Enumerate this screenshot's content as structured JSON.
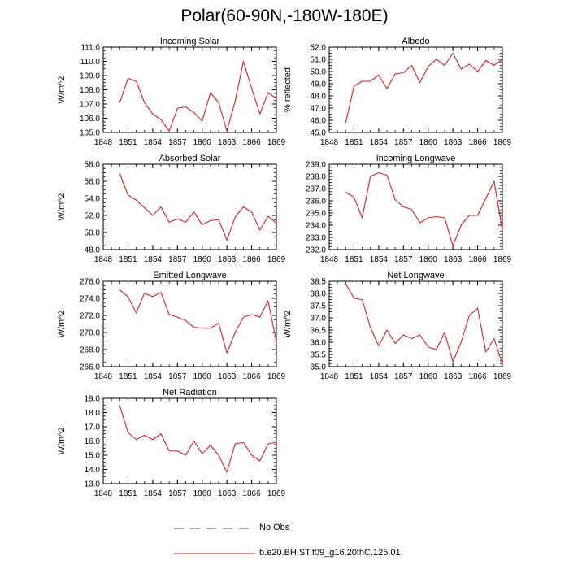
{
  "title": "Polar(60-90N,-180W-180E)",
  "colors": {
    "model_line": "#e8191e",
    "obs_line": "#3b3bb8",
    "axis": "#000000"
  },
  "legend": {
    "obs_label": "No Obs",
    "model_label": "b.e20.BHIST.f09_g16.20thC.125.01"
  },
  "chart_data": [
    {
      "type": "line",
      "title": "Incoming Solar",
      "ylabel": "W/m^2",
      "xlim": [
        1848,
        1869
      ],
      "ylim": [
        105.0,
        111.0
      ],
      "yticks": [
        105.0,
        106.0,
        107.0,
        108.0,
        109.0,
        110.0,
        111.0
      ],
      "ytick_labels": [
        "105.0",
        "106.0",
        "107.0",
        "108.0",
        "109.0",
        "110.0",
        "111.0"
      ],
      "xticks": [
        1848,
        1851,
        1854,
        1857,
        1860,
        1863,
        1866,
        1869
      ],
      "xtick_labels": [
        "1848",
        "1851",
        "1854",
        "1857",
        "1860",
        "1863",
        "1866",
        "1869"
      ],
      "series": [
        {
          "x": [
            1850,
            1851,
            1852,
            1853,
            1854,
            1855,
            1856,
            1857,
            1858,
            1859,
            1860,
            1861,
            1862,
            1863,
            1864,
            1865,
            1866,
            1867,
            1868,
            1869
          ],
          "values": [
            107.1,
            108.8,
            108.6,
            107.1,
            106.3,
            105.9,
            105.1,
            106.7,
            106.8,
            106.4,
            105.8,
            107.8,
            107.1,
            105.1,
            107.2,
            110.0,
            108.1,
            106.3,
            107.8,
            107.4
          ]
        }
      ]
    },
    {
      "type": "line",
      "title": "Albedo",
      "ylabel": "% reflected",
      "xlim": [
        1848,
        1869
      ],
      "ylim": [
        45.0,
        52.0
      ],
      "yticks": [
        45.0,
        46.0,
        47.0,
        48.0,
        49.0,
        50.0,
        51.0,
        52.0
      ],
      "ytick_labels": [
        "45.0",
        "46.0",
        "47.0",
        "48.0",
        "49.0",
        "50.0",
        "51.0",
        "52.0"
      ],
      "xticks": [
        1848,
        1851,
        1854,
        1857,
        1860,
        1863,
        1866,
        1869
      ],
      "xtick_labels": [
        "1848",
        "1851",
        "1854",
        "1857",
        "1860",
        "1863",
        "1866",
        "1869"
      ],
      "series": [
        {
          "x": [
            1850,
            1851,
            1852,
            1853,
            1854,
            1855,
            1856,
            1857,
            1858,
            1859,
            1860,
            1861,
            1862,
            1863,
            1864,
            1865,
            1866,
            1867,
            1868,
            1869
          ],
          "values": [
            45.8,
            48.8,
            49.2,
            49.2,
            49.7,
            48.6,
            49.8,
            49.9,
            50.5,
            49.1,
            50.4,
            51.0,
            50.5,
            51.5,
            50.2,
            50.6,
            50.0,
            50.9,
            50.5,
            51.0
          ]
        }
      ]
    },
    {
      "type": "line",
      "title": "Absorbed Solar",
      "ylabel": "W/m^2",
      "xlim": [
        1848,
        1869
      ],
      "ylim": [
        48.0,
        58.0
      ],
      "yticks": [
        48.0,
        50.0,
        52.0,
        54.0,
        56.0,
        58.0
      ],
      "ytick_labels": [
        "48.0",
        "50.0",
        "52.0",
        "54.0",
        "56.0",
        "58.0"
      ],
      "xticks": [
        1848,
        1851,
        1854,
        1857,
        1860,
        1863,
        1866,
        1869
      ],
      "xtick_labels": [
        "1848",
        "1851",
        "1854",
        "1857",
        "1860",
        "1863",
        "1866",
        "1869"
      ],
      "series": [
        {
          "x": [
            1850,
            1851,
            1852,
            1853,
            1854,
            1855,
            1856,
            1857,
            1858,
            1859,
            1860,
            1861,
            1862,
            1863,
            1864,
            1865,
            1866,
            1867,
            1868,
            1869
          ],
          "values": [
            56.9,
            54.4,
            53.8,
            52.9,
            52.0,
            53.0,
            51.2,
            51.6,
            51.2,
            52.4,
            50.9,
            51.4,
            51.5,
            49.1,
            51.8,
            53.0,
            52.4,
            50.3,
            51.9,
            51.1
          ]
        }
      ]
    },
    {
      "type": "line",
      "title": "Incoming Longwave",
      "ylabel": "",
      "xlim": [
        1848,
        1869
      ],
      "ylim": [
        232.0,
        239.0
      ],
      "yticks": [
        232.0,
        233.0,
        234.0,
        235.0,
        236.0,
        237.0,
        238.0,
        239.0
      ],
      "ytick_labels": [
        "232.0",
        "233.0",
        "234.0",
        "235.0",
        "236.0",
        "237.0",
        "238.0",
        "239.0"
      ],
      "xticks": [
        1848,
        1851,
        1854,
        1857,
        1860,
        1863,
        1866,
        1869
      ],
      "xtick_labels": [
        "1848",
        "1851",
        "1854",
        "1857",
        "1860",
        "1863",
        "1866",
        "1869"
      ],
      "series": [
        {
          "x": [
            1850,
            1851,
            1852,
            1853,
            1854,
            1855,
            1856,
            1857,
            1858,
            1859,
            1860,
            1861,
            1862,
            1863,
            1864,
            1865,
            1866,
            1867,
            1868,
            1869
          ],
          "values": [
            236.7,
            236.3,
            234.6,
            238.0,
            238.3,
            238.1,
            236.1,
            235.5,
            235.3,
            234.2,
            234.6,
            234.7,
            234.6,
            232.3,
            234.0,
            234.8,
            234.8,
            236.2,
            237.6,
            233.6
          ]
        }
      ]
    },
    {
      "type": "line",
      "title": "Emitted Longwave",
      "ylabel": "W/m^2",
      "xlim": [
        1848,
        1869
      ],
      "ylim": [
        266.0,
        276.0
      ],
      "yticks": [
        266.0,
        268.0,
        270.0,
        272.0,
        274.0,
        276.0
      ],
      "ytick_labels": [
        "266.0",
        "268.0",
        "270.0",
        "272.0",
        "274.0",
        "276.0"
      ],
      "xticks": [
        1848,
        1851,
        1854,
        1857,
        1860,
        1863,
        1866,
        1869
      ],
      "xtick_labels": [
        "1848",
        "1851",
        "1854",
        "1857",
        "1860",
        "1863",
        "1866",
        "1869"
      ],
      "series": [
        {
          "x": [
            1850,
            1851,
            1852,
            1853,
            1854,
            1855,
            1856,
            1857,
            1858,
            1859,
            1860,
            1861,
            1862,
            1863,
            1864,
            1865,
            1866,
            1867,
            1868,
            1869
          ],
          "values": [
            275.0,
            274.2,
            272.3,
            274.6,
            274.2,
            274.7,
            272.1,
            271.8,
            271.4,
            270.6,
            270.5,
            270.5,
            271.1,
            267.6,
            270.0,
            271.8,
            272.1,
            271.8,
            273.7,
            268.9
          ]
        }
      ]
    },
    {
      "type": "line",
      "title": "Net Longwave",
      "ylabel": "W/m^2",
      "xlim": [
        1848,
        1869
      ],
      "ylim": [
        35.0,
        38.5
      ],
      "yticks": [
        35.0,
        35.5,
        36.0,
        36.5,
        37.0,
        37.5,
        38.0,
        38.5
      ],
      "ytick_labels": [
        "35.0",
        "35.5",
        "36.0",
        "36.5",
        "37.0",
        "37.5",
        "38.0",
        "38.5"
      ],
      "xticks": [
        1848,
        1851,
        1854,
        1857,
        1860,
        1863,
        1866,
        1869
      ],
      "xtick_labels": [
        "1848",
        "1851",
        "1854",
        "1857",
        "1860",
        "1863",
        "1866",
        "1869"
      ],
      "series": [
        {
          "x": [
            1850,
            1851,
            1852,
            1853,
            1854,
            1855,
            1856,
            1857,
            1858,
            1859,
            1860,
            1861,
            1862,
            1863,
            1864,
            1865,
            1866,
            1867,
            1868,
            1869
          ],
          "values": [
            38.4,
            37.8,
            37.75,
            36.6,
            35.85,
            36.5,
            35.95,
            36.3,
            36.15,
            36.3,
            35.8,
            35.7,
            36.4,
            35.2,
            36.0,
            37.1,
            37.4,
            35.6,
            36.15,
            35.1
          ]
        }
      ]
    },
    {
      "type": "line",
      "title": "Net Radiation",
      "ylabel": "W/m^2",
      "xlim": [
        1848,
        1869
      ],
      "ylim": [
        13.0,
        19.0
      ],
      "yticks": [
        13.0,
        14.0,
        15.0,
        16.0,
        17.0,
        18.0,
        19.0
      ],
      "ytick_labels": [
        "13.0",
        "14.0",
        "15.0",
        "16.0",
        "17.0",
        "18.0",
        "19.0"
      ],
      "xticks": [
        1848,
        1851,
        1854,
        1857,
        1860,
        1863,
        1866,
        1869
      ],
      "xtick_labels": [
        "1848",
        "1851",
        "1854",
        "1857",
        "1860",
        "1863",
        "1866",
        "1869"
      ],
      "series": [
        {
          "x": [
            1850,
            1851,
            1852,
            1853,
            1854,
            1855,
            1856,
            1857,
            1858,
            1859,
            1860,
            1861,
            1862,
            1863,
            1864,
            1865,
            1866,
            1867,
            1868,
            1869
          ],
          "values": [
            18.5,
            16.6,
            16.1,
            16.4,
            16.1,
            16.5,
            15.3,
            15.3,
            15.0,
            16.0,
            15.1,
            15.7,
            15.0,
            13.8,
            15.8,
            15.9,
            15.0,
            14.6,
            15.8,
            15.9
          ]
        }
      ]
    }
  ]
}
